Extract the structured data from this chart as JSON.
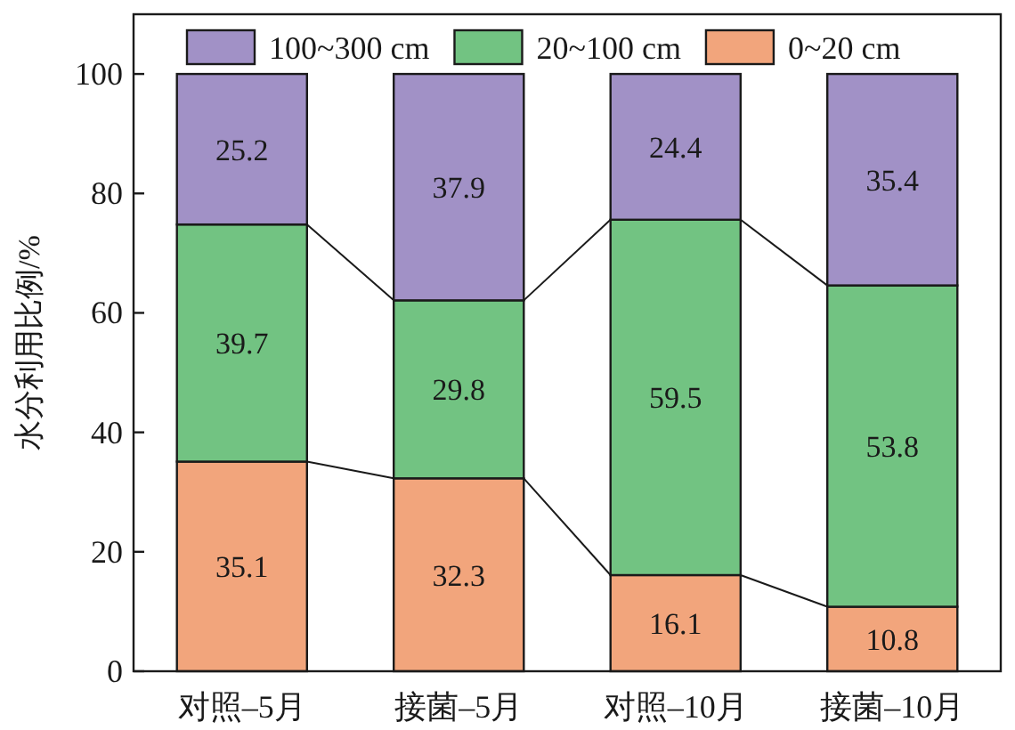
{
  "chart_data": {
    "type": "bar",
    "stacked": true,
    "ylabel": "水分利用比例/%",
    "categories": [
      "对照–5月",
      "接菌–5月",
      "对照–10月",
      "接菌–10月"
    ],
    "series": [
      {
        "name": "0~20 cm",
        "color": "#f2a57c",
        "values": [
          35.1,
          32.3,
          16.1,
          10.8
        ]
      },
      {
        "name": "20~100 cm",
        "color": "#72c382",
        "values": [
          39.7,
          29.8,
          59.5,
          53.8
        ]
      },
      {
        "name": "100~300 cm",
        "color": "#a191c6",
        "values": [
          25.2,
          37.9,
          24.4,
          35.4
        ]
      }
    ],
    "ylim": [
      0,
      110
    ],
    "yticks": [
      0,
      20,
      40,
      60,
      80,
      100
    ],
    "data_labels": true,
    "legend": "top",
    "grid": false
  }
}
